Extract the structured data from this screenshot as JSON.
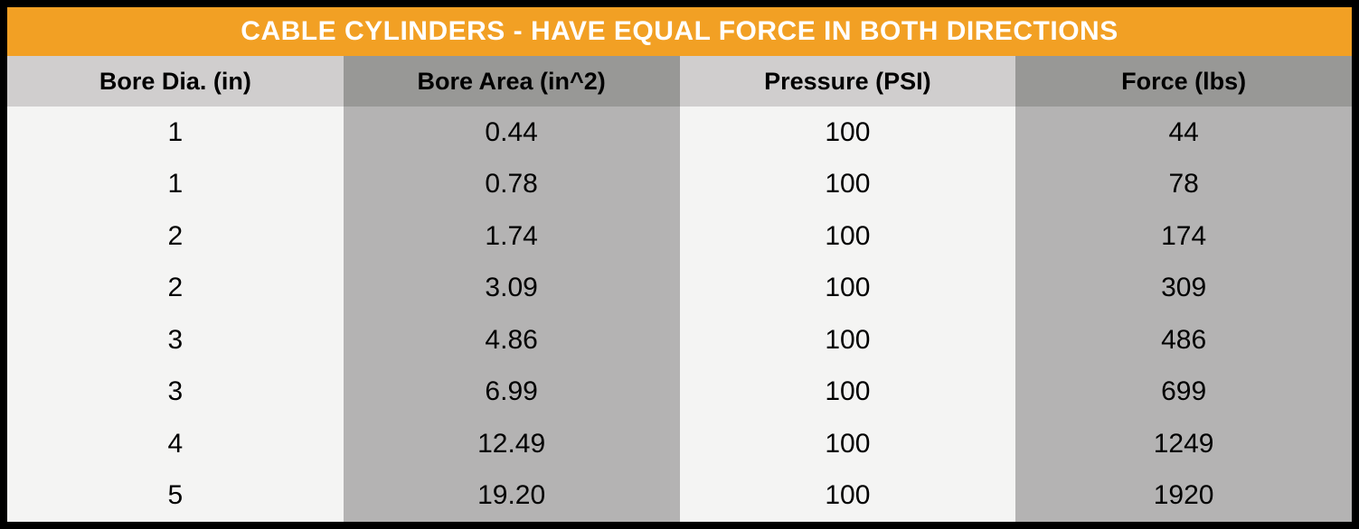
{
  "title": "CABLE CYLINDERS - HAVE EQUAL FORCE IN BOTH DIRECTIONS",
  "table": {
    "columns": [
      "Bore Dia. (in)",
      "Bore Area (in^2)",
      "Pressure (PSI)",
      "Force (lbs)"
    ],
    "rows": [
      [
        "1",
        "0.44",
        "100",
        "44"
      ],
      [
        "1",
        "0.78",
        "100",
        "78"
      ],
      [
        "2",
        "1.74",
        "100",
        "174"
      ],
      [
        "2",
        "3.09",
        "100",
        "309"
      ],
      [
        "3",
        "4.86",
        "100",
        "486"
      ],
      [
        "3",
        "6.99",
        "100",
        "699"
      ],
      [
        "4",
        "12.49",
        "100",
        "1249"
      ],
      [
        "5",
        "19.20",
        "100",
        "1920"
      ]
    ]
  },
  "chart_data": {
    "type": "table",
    "title": "CABLE CYLINDERS - HAVE EQUAL FORCE IN BOTH DIRECTIONS",
    "columns": [
      "Bore Dia. (in)",
      "Bore Area (in^2)",
      "Pressure (PSI)",
      "Force (lbs)"
    ],
    "rows": [
      [
        1,
        0.44,
        100,
        44
      ],
      [
        1,
        0.78,
        100,
        78
      ],
      [
        2,
        1.74,
        100,
        174
      ],
      [
        2,
        3.09,
        100,
        309
      ],
      [
        3,
        4.86,
        100,
        486
      ],
      [
        3,
        6.99,
        100,
        699
      ],
      [
        4,
        12.49,
        100,
        1249
      ],
      [
        5,
        19.2,
        100,
        1920
      ]
    ]
  },
  "colors": {
    "accent_orange": "#F2A024",
    "header_light_gray": "#D0CECE",
    "header_dark_gray": "#989896",
    "body_light_gray": "#F4F4F3",
    "body_dark_gray": "#B4B3B3",
    "border_black": "#000000",
    "title_text": "#FFFFFF",
    "cell_text": "#000000"
  }
}
